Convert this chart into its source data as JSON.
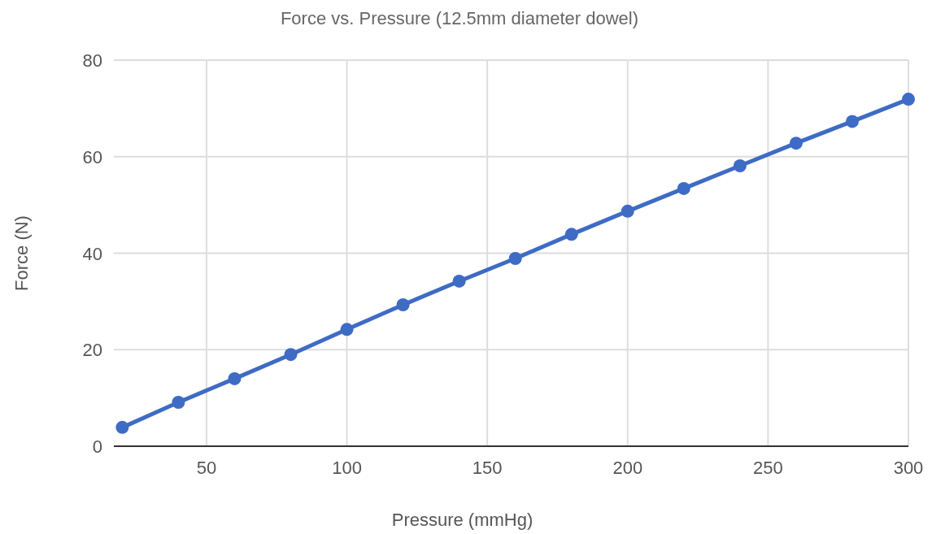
{
  "chart_data": {
    "type": "line",
    "title": "Force vs. Pressure (12.5mm diameter dowel)",
    "xlabel": "Pressure (mmHg)",
    "ylabel": "Force (N)",
    "x": [
      20,
      40,
      60,
      80,
      100,
      120,
      140,
      160,
      180,
      200,
      220,
      240,
      260,
      280,
      300
    ],
    "series": [
      {
        "color": "#3e6bc4",
        "values": [
          3.9,
          9.1,
          14.0,
          19.0,
          24.2,
          29.3,
          34.2,
          38.9,
          43.9,
          48.7,
          53.4,
          58.1,
          62.8,
          67.3,
          71.9
        ]
      }
    ],
    "xlim": [
      17,
      300
    ],
    "xticks": [
      50,
      100,
      150,
      200,
      250,
      300
    ],
    "ylim": [
      0,
      80
    ],
    "yticks": [
      0,
      20,
      40,
      60,
      80
    ],
    "grid": true,
    "marker": "circle",
    "line_style": "solid"
  }
}
